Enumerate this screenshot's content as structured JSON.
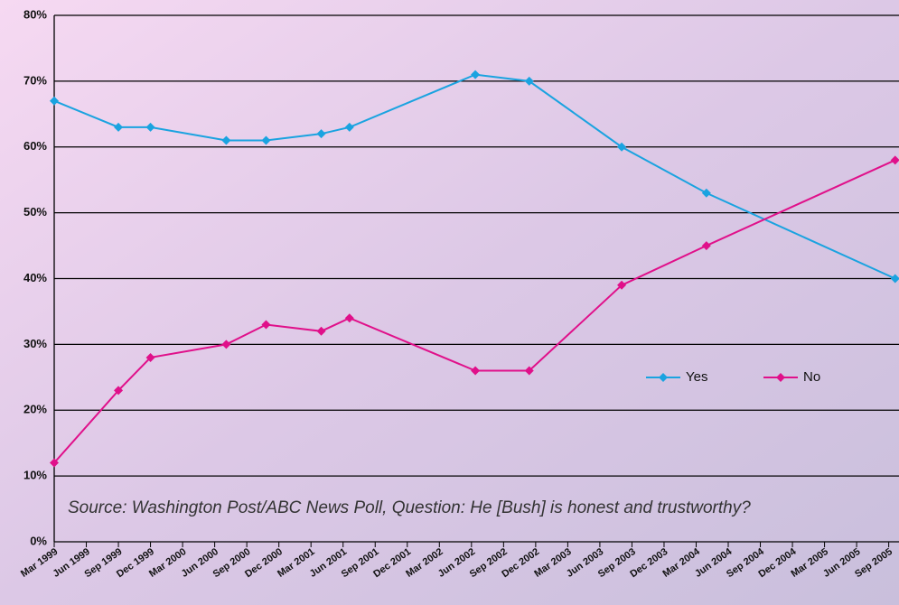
{
  "chart_data": {
    "type": "line",
    "note": "Source: Washington Post/ABC News Poll, Question: He [Bush] is honest and trustworthy?",
    "x": [
      1999.0,
      1999.5,
      1999.75,
      2000.34,
      2000.65,
      2001.08,
      2001.3,
      2002.28,
      2002.7,
      2003.42,
      2004.08,
      2005.55
    ],
    "series": [
      {
        "name": "Yes",
        "color": "#1aa3e0",
        "values": [
          67,
          63,
          63,
          61,
          61,
          62,
          63,
          71,
          70,
          60,
          53,
          40
        ]
      },
      {
        "name": "No",
        "color": "#e0108a",
        "values": [
          12,
          23,
          28,
          30,
          33,
          32,
          34,
          26,
          26,
          39,
          45,
          58
        ]
      }
    ],
    "xlim": [
      1999.0,
      2005.58
    ],
    "xticks": [
      {
        "value": 1999.0,
        "label": "Mar 1999"
      },
      {
        "value": 1999.25,
        "label": "Jun 1999"
      },
      {
        "value": 1999.5,
        "label": "Sep 1999"
      },
      {
        "value": 1999.75,
        "label": "Dec 1999"
      },
      {
        "value": 2000.0,
        "label": "Mar 2000"
      },
      {
        "value": 2000.25,
        "label": "Jun 2000"
      },
      {
        "value": 2000.5,
        "label": "Sep 2000"
      },
      {
        "value": 2000.75,
        "label": "Dec 2000"
      },
      {
        "value": 2001.0,
        "label": "Mar 2001"
      },
      {
        "value": 2001.25,
        "label": "Jun 2001"
      },
      {
        "value": 2001.5,
        "label": "Sep 2001"
      },
      {
        "value": 2001.75,
        "label": "Dec 2001"
      },
      {
        "value": 2002.0,
        "label": "Mar 2002"
      },
      {
        "value": 2002.25,
        "label": "Jun 2002"
      },
      {
        "value": 2002.5,
        "label": "Sep 2002"
      },
      {
        "value": 2002.75,
        "label": "Dec 2002"
      },
      {
        "value": 2003.0,
        "label": "Mar 2003"
      },
      {
        "value": 2003.25,
        "label": "Jun 2003"
      },
      {
        "value": 2003.5,
        "label": "Sep 2003"
      },
      {
        "value": 2003.75,
        "label": "Dec 2003"
      },
      {
        "value": 2004.0,
        "label": "Mar 2004"
      },
      {
        "value": 2004.25,
        "label": "Jun 2004"
      },
      {
        "value": 2004.5,
        "label": "Sep 2004"
      },
      {
        "value": 2004.75,
        "label": "Dec 2004"
      },
      {
        "value": 2005.0,
        "label": "Mar 2005"
      },
      {
        "value": 2005.25,
        "label": "Jun 2005"
      },
      {
        "value": 2005.5,
        "label": "Sep 2005"
      }
    ],
    "ylim": [
      0,
      80
    ],
    "yticks": [
      {
        "value": 0,
        "label": "0%"
      },
      {
        "value": 10,
        "label": "10%"
      },
      {
        "value": 20,
        "label": "20%"
      },
      {
        "value": 30,
        "label": "30%"
      },
      {
        "value": 40,
        "label": "40%"
      },
      {
        "value": 50,
        "label": "50%"
      },
      {
        "value": 60,
        "label": "60%"
      },
      {
        "value": 70,
        "label": "70%"
      },
      {
        "value": 80,
        "label": "80%"
      }
    ],
    "grid": true
  }
}
